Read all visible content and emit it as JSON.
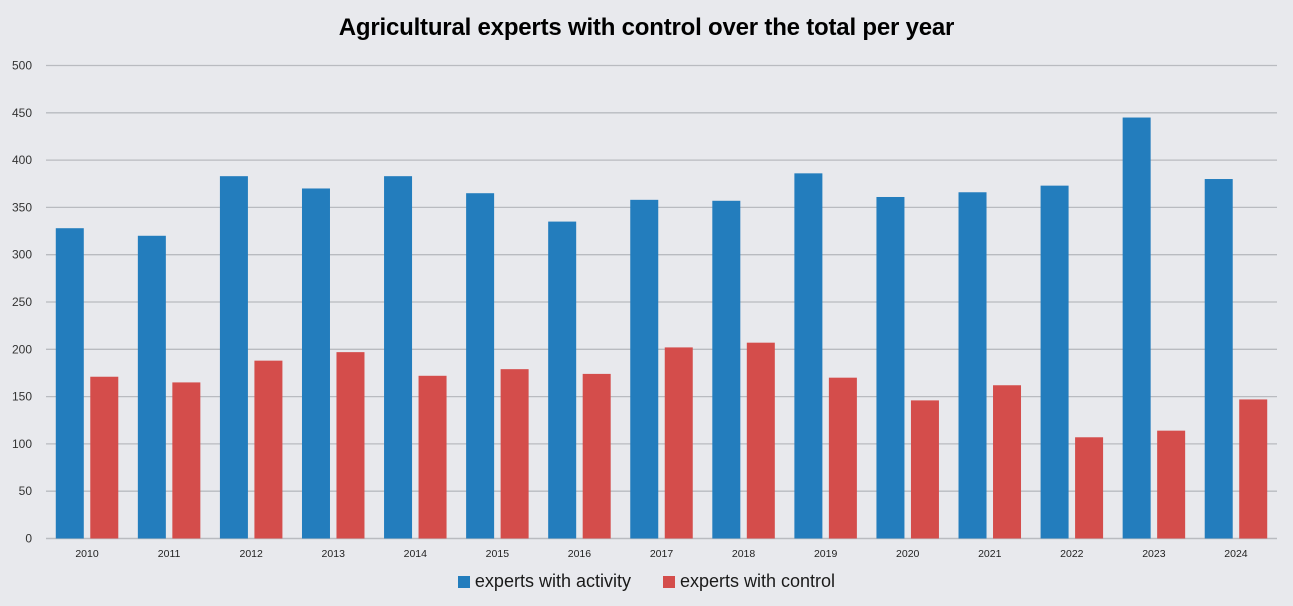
{
  "chart_data": {
    "type": "bar",
    "title": "Agricultural experts with control over the total per year",
    "xlabel": "",
    "ylabel": "",
    "ylim": [
      0,
      500
    ],
    "yticks": [
      0,
      50,
      100,
      150,
      200,
      250,
      300,
      350,
      400,
      450,
      500
    ],
    "grid": true,
    "legend_position": "bottom",
    "categories": [
      "2010",
      "2011",
      "2012",
      "2013",
      "2014",
      "2015",
      "2016",
      "2017",
      "2018",
      "2019",
      "2020",
      "2021",
      "2022",
      "2023",
      "2024"
    ],
    "series": [
      {
        "name": "experts with activity",
        "color": "#237dbd",
        "values": [
          328,
          320,
          383,
          370,
          383,
          365,
          335,
          358,
          357,
          386,
          361,
          366,
          373,
          445,
          380
        ]
      },
      {
        "name": "experts with control",
        "color": "#d44d4b",
        "values": [
          171,
          165,
          188,
          197,
          172,
          179,
          174,
          202,
          207,
          170,
          146,
          162,
          107,
          114,
          147
        ]
      }
    ]
  }
}
